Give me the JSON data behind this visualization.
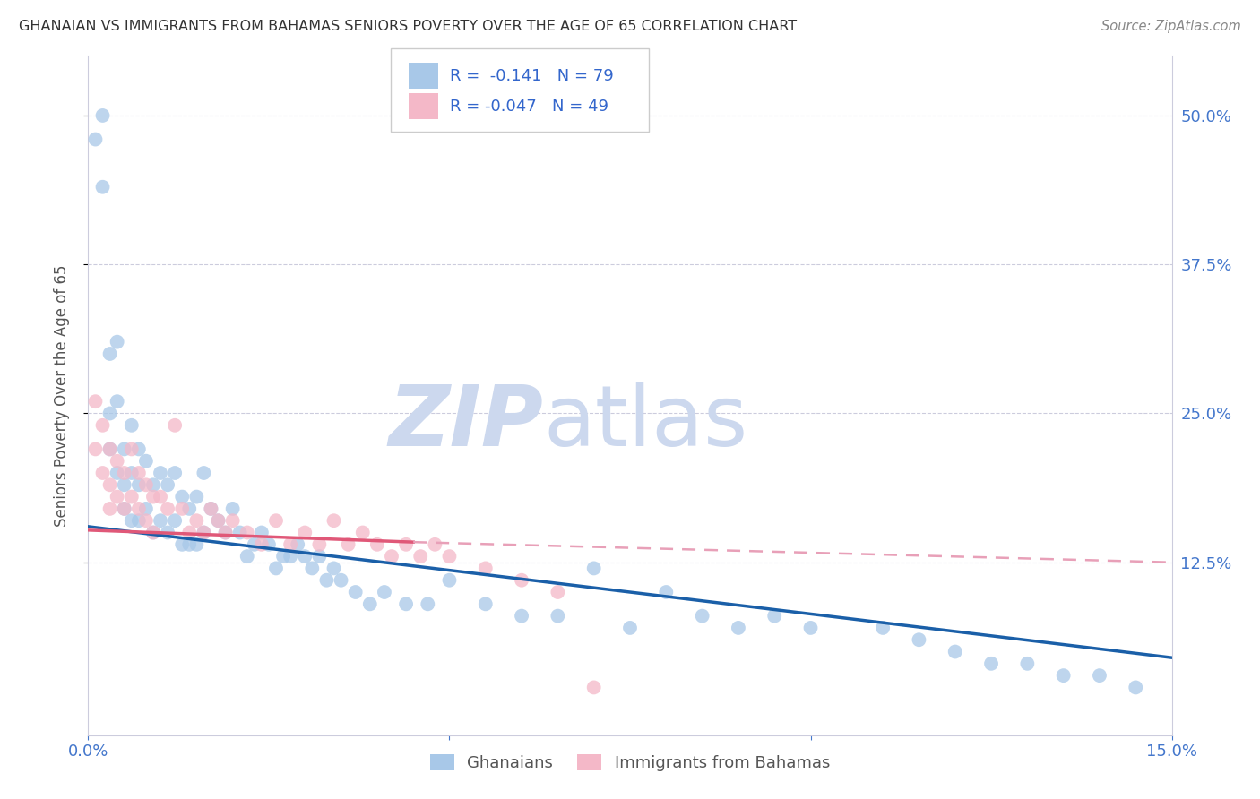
{
  "title": "GHANAIAN VS IMMIGRANTS FROM BAHAMAS SENIORS POVERTY OVER THE AGE OF 65 CORRELATION CHART",
  "source": "Source: ZipAtlas.com",
  "ylabel": "Seniors Poverty Over the Age of 65",
  "xlim": [
    0.0,
    0.15
  ],
  "ylim": [
    -0.02,
    0.55
  ],
  "color_ghanaian": "#a8c8e8",
  "color_bahamas": "#f4b8c8",
  "color_line_blue": "#1a5fa8",
  "color_line_pink": "#e05878",
  "color_line_dashed": "#e8a0b8",
  "watermark_zip": "ZIP",
  "watermark_atlas": "atlas",
  "watermark_color": "#ccd8ee",
  "legend_text_color": "#3366cc",
  "tick_color": "#4477cc",
  "ghanaian_x": [
    0.001,
    0.002,
    0.002,
    0.003,
    0.003,
    0.003,
    0.004,
    0.004,
    0.004,
    0.005,
    0.005,
    0.005,
    0.006,
    0.006,
    0.006,
    0.007,
    0.007,
    0.007,
    0.008,
    0.008,
    0.009,
    0.009,
    0.01,
    0.01,
    0.011,
    0.011,
    0.012,
    0.012,
    0.013,
    0.013,
    0.014,
    0.014,
    0.015,
    0.015,
    0.016,
    0.016,
    0.017,
    0.018,
    0.019,
    0.02,
    0.021,
    0.022,
    0.023,
    0.024,
    0.025,
    0.026,
    0.027,
    0.028,
    0.029,
    0.03,
    0.031,
    0.032,
    0.033,
    0.034,
    0.035,
    0.037,
    0.039,
    0.041,
    0.044,
    0.047,
    0.05,
    0.055,
    0.06,
    0.065,
    0.07,
    0.075,
    0.08,
    0.085,
    0.09,
    0.095,
    0.1,
    0.11,
    0.115,
    0.12,
    0.125,
    0.13,
    0.135,
    0.14,
    0.145
  ],
  "ghanaian_y": [
    0.48,
    0.44,
    0.5,
    0.3,
    0.22,
    0.25,
    0.31,
    0.26,
    0.2,
    0.22,
    0.19,
    0.17,
    0.24,
    0.2,
    0.16,
    0.22,
    0.19,
    0.16,
    0.21,
    0.17,
    0.19,
    0.15,
    0.2,
    0.16,
    0.19,
    0.15,
    0.2,
    0.16,
    0.18,
    0.14,
    0.17,
    0.14,
    0.18,
    0.14,
    0.2,
    0.15,
    0.17,
    0.16,
    0.15,
    0.17,
    0.15,
    0.13,
    0.14,
    0.15,
    0.14,
    0.12,
    0.13,
    0.13,
    0.14,
    0.13,
    0.12,
    0.13,
    0.11,
    0.12,
    0.11,
    0.1,
    0.09,
    0.1,
    0.09,
    0.09,
    0.11,
    0.09,
    0.08,
    0.08,
    0.12,
    0.07,
    0.1,
    0.08,
    0.07,
    0.08,
    0.07,
    0.07,
    0.06,
    0.05,
    0.04,
    0.04,
    0.03,
    0.03,
    0.02
  ],
  "bahamas_x": [
    0.001,
    0.001,
    0.002,
    0.002,
    0.003,
    0.003,
    0.003,
    0.004,
    0.004,
    0.005,
    0.005,
    0.006,
    0.006,
    0.007,
    0.007,
    0.008,
    0.008,
    0.009,
    0.009,
    0.01,
    0.011,
    0.012,
    0.013,
    0.014,
    0.015,
    0.016,
    0.017,
    0.018,
    0.019,
    0.02,
    0.022,
    0.024,
    0.026,
    0.028,
    0.03,
    0.032,
    0.034,
    0.036,
    0.038,
    0.04,
    0.042,
    0.044,
    0.046,
    0.048,
    0.05,
    0.055,
    0.06,
    0.065,
    0.07
  ],
  "bahamas_y": [
    0.26,
    0.22,
    0.24,
    0.2,
    0.22,
    0.19,
    0.17,
    0.21,
    0.18,
    0.2,
    0.17,
    0.22,
    0.18,
    0.2,
    0.17,
    0.19,
    0.16,
    0.18,
    0.15,
    0.18,
    0.17,
    0.24,
    0.17,
    0.15,
    0.16,
    0.15,
    0.17,
    0.16,
    0.15,
    0.16,
    0.15,
    0.14,
    0.16,
    0.14,
    0.15,
    0.14,
    0.16,
    0.14,
    0.15,
    0.14,
    0.13,
    0.14,
    0.13,
    0.14,
    0.13,
    0.12,
    0.11,
    0.1,
    0.02
  ],
  "line_blue_x0": 0.0,
  "line_blue_y0": 0.155,
  "line_blue_x1": 0.15,
  "line_blue_y1": 0.045,
  "line_pink_solid_x0": 0.0,
  "line_pink_solid_y0": 0.152,
  "line_pink_solid_x1": 0.045,
  "line_pink_solid_x1_val": 0.045,
  "line_pink_y1": 0.142,
  "line_pink_dashed_x0": 0.045,
  "line_pink_dashed_x1": 0.15,
  "line_pink_dashed_y0": 0.142,
  "line_pink_dashed_y1": 0.125
}
